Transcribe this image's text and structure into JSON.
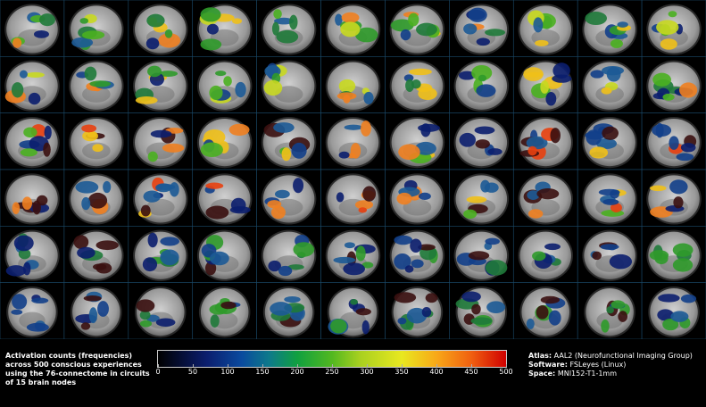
{
  "caption": "Activation counts (frequencies) across 500 conscious experiences using the 76-connectome in circuits of 15 brain nodes",
  "colorbar": {
    "ticks": [
      "0",
      "50",
      "100",
      "150",
      "200",
      "250",
      "300",
      "350",
      "400",
      "450",
      "500"
    ],
    "min": 0,
    "max": 500
  },
  "meta": {
    "atlas_label": "Atlas:",
    "atlas_value": "AAL2 (Neurofunctional Imaging Group)",
    "software_label": "Software:",
    "software_value": "FSLeyes (Linux)",
    "space_label": "Space:",
    "space_value": "MNI152-T1-1mm"
  },
  "grid": {
    "rows": 6,
    "cols": 11
  },
  "colors": {
    "background": "#000000",
    "brain": "#b8b8b8",
    "divider": "#1a4a6a"
  }
}
